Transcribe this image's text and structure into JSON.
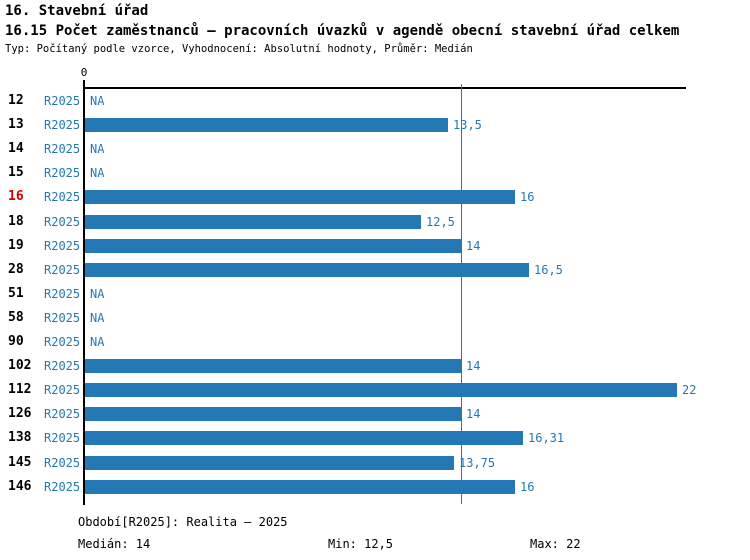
{
  "header": {
    "title": "16. Stavební úřad",
    "subtitle": "16.15 Počet zaměstnanců – pracovních úvazků v agendě obecní stavební úřad celkem",
    "meta": "Typ: Počítaný podle vzorce, Vyhodnocení: Absolutní hodnoty, Průměr: Medián"
  },
  "chart_data": {
    "type": "bar",
    "orientation": "horizontal",
    "title": "16.15 Počet zaměstnanců – pracovních úvazků v agendě obecní stavební úřad celkem",
    "x_axis": {
      "zero_label": "0",
      "min": 0,
      "max": 22.3,
      "gridlines": false
    },
    "median_line_value": 14,
    "stats": {
      "median": 14,
      "min": 12.5,
      "max": 22
    },
    "colors": {
      "bar": "#2478b4",
      "text_blue": "#2478b4",
      "highlight_red": "#d40000",
      "axis": "#000000"
    },
    "categories": [
      "12",
      "13",
      "14",
      "15",
      "16",
      "18",
      "19",
      "28",
      "51",
      "58",
      "90",
      "102",
      "112",
      "126",
      "138",
      "145",
      "146"
    ],
    "rows": [
      {
        "id": "12",
        "period": "R2025",
        "value": null,
        "label": "NA",
        "highlight": false
      },
      {
        "id": "13",
        "period": "R2025",
        "value": 13.5,
        "label": "13,5",
        "highlight": false
      },
      {
        "id": "14",
        "period": "R2025",
        "value": null,
        "label": "NA",
        "highlight": false
      },
      {
        "id": "15",
        "period": "R2025",
        "value": null,
        "label": "NA",
        "highlight": false
      },
      {
        "id": "16",
        "period": "R2025",
        "value": 16,
        "label": "16",
        "highlight": true
      },
      {
        "id": "18",
        "period": "R2025",
        "value": 12.5,
        "label": "12,5",
        "highlight": false
      },
      {
        "id": "19",
        "period": "R2025",
        "value": 14,
        "label": "14",
        "highlight": false
      },
      {
        "id": "28",
        "period": "R2025",
        "value": 16.5,
        "label": "16,5",
        "highlight": false
      },
      {
        "id": "51",
        "period": "R2025",
        "value": null,
        "label": "NA",
        "highlight": false
      },
      {
        "id": "58",
        "period": "R2025",
        "value": null,
        "label": "NA",
        "highlight": false
      },
      {
        "id": "90",
        "period": "R2025",
        "value": null,
        "label": "NA",
        "highlight": false
      },
      {
        "id": "102",
        "period": "R2025",
        "value": 14,
        "label": "14",
        "highlight": false
      },
      {
        "id": "112",
        "period": "R2025",
        "value": 22,
        "label": "22",
        "highlight": false
      },
      {
        "id": "126",
        "period": "R2025",
        "value": 14,
        "label": "14",
        "highlight": false
      },
      {
        "id": "138",
        "period": "R2025",
        "value": 16.31,
        "label": "16,31",
        "highlight": false
      },
      {
        "id": "145",
        "period": "R2025",
        "value": 13.75,
        "label": "13,75",
        "highlight": false
      },
      {
        "id": "146",
        "period": "R2025",
        "value": 16,
        "label": "16",
        "highlight": false
      }
    ]
  },
  "footer": {
    "period_info": "Období[R2025]: Realita – 2025",
    "median": "Medián: 14",
    "min": "Min: 12,5",
    "max": "Max: 22"
  }
}
